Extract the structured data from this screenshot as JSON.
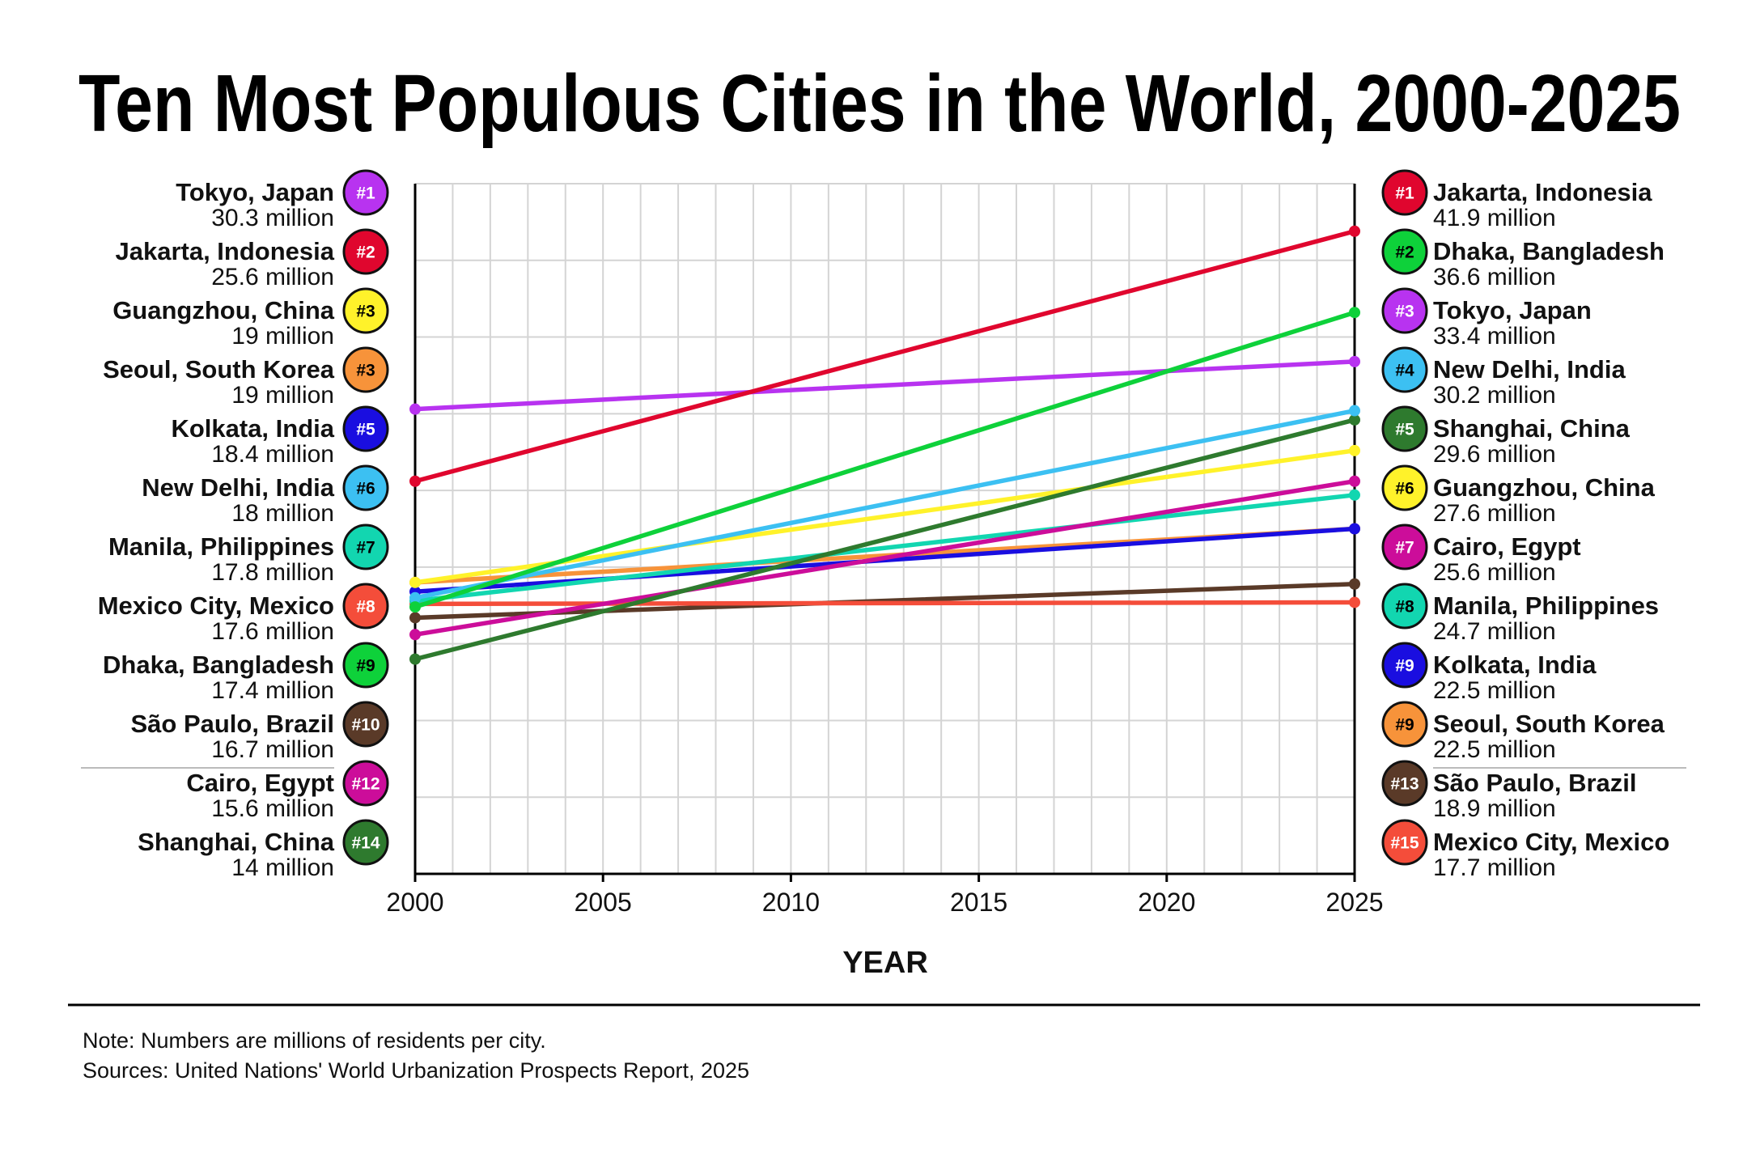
{
  "title": "Ten Most Populous Cities in the World, 2000-2025",
  "note": "Note: Numbers are millions of residents per city.",
  "sources": "Sources: United Nations' World Urbanization Prospects Report, 2025",
  "chart_data": {
    "type": "line",
    "title": "Ten Most Populous Cities in the World, 2000-2025",
    "xlabel": "YEAR",
    "x": [
      2000,
      2025
    ],
    "xticks": [
      "2000",
      "2005",
      "2010",
      "2015",
      "2020",
      "2025"
    ],
    "xlim": [
      2000,
      2025
    ],
    "ylim": [
      0,
      45
    ],
    "grid": true,
    "series": [
      {
        "name": "São Paulo, Brazil",
        "color": "#5a3a28",
        "values": [
          16.7,
          18.9
        ]
      },
      {
        "name": "Mexico City, Mexico",
        "color": "#f44d3a",
        "values": [
          17.6,
          17.7
        ]
      },
      {
        "name": "Seoul, South Korea",
        "color": "#f7933a",
        "values": [
          19,
          22.5
        ]
      },
      {
        "name": "Kolkata, India",
        "color": "#1a0ee0",
        "values": [
          18.4,
          22.5
        ]
      },
      {
        "name": "Manila, Philippines",
        "color": "#12d6b0",
        "values": [
          17.8,
          24.7
        ]
      },
      {
        "name": "Cairo, Egypt",
        "color": "#cc0d9a",
        "values": [
          15.6,
          25.6
        ]
      },
      {
        "name": "Guangzhou, China",
        "color": "#fff22a",
        "values": [
          19,
          27.6
        ]
      },
      {
        "name": "Shanghai, China",
        "color": "#2e7a2e",
        "values": [
          14,
          29.6
        ]
      },
      {
        "name": "New Delhi, India",
        "color": "#3cc0f2",
        "values": [
          18,
          30.2
        ]
      },
      {
        "name": "Tokyo, Japan",
        "color": "#b833f0",
        "values": [
          30.3,
          33.4
        ]
      },
      {
        "name": "Dhaka, Bangladesh",
        "color": "#0ed13a",
        "values": [
          17.4,
          36.6
        ]
      },
      {
        "name": "Jakarta, Indonesia",
        "color": "#e0062e",
        "values": [
          25.6,
          41.9
        ]
      }
    ],
    "left_labels": [
      {
        "rank": "#1",
        "city": "Tokyo, Japan",
        "value": "30.3 million",
        "color": "#b833f0",
        "text_color": "#ffffff"
      },
      {
        "rank": "#2",
        "city": "Jakarta, Indonesia",
        "value": "25.6 million",
        "color": "#e0062e",
        "text_color": "#ffffff"
      },
      {
        "rank": "#3",
        "city": "Guangzhou, China",
        "value": "19 million",
        "color": "#fff22a",
        "text_color": "#000000"
      },
      {
        "rank": "#3",
        "city": "Seoul, South Korea",
        "value": "19 million",
        "color": "#f7933a",
        "text_color": "#000000"
      },
      {
        "rank": "#5",
        "city": "Kolkata, India",
        "value": "18.4 million",
        "color": "#1a0ee0",
        "text_color": "#ffffff"
      },
      {
        "rank": "#6",
        "city": "New Delhi, India",
        "value": "18 million",
        "color": "#3cc0f2",
        "text_color": "#000000"
      },
      {
        "rank": "#7",
        "city": "Manila, Philippines",
        "value": "17.8 million",
        "color": "#12d6b0",
        "text_color": "#000000"
      },
      {
        "rank": "#8",
        "city": "Mexico City, Mexico",
        "value": "17.6 million",
        "color": "#f44d3a",
        "text_color": "#ffffff"
      },
      {
        "rank": "#9",
        "city": "Dhaka, Bangladesh",
        "value": "17.4 million",
        "color": "#0ed13a",
        "text_color": "#000000"
      },
      {
        "rank": "#10",
        "city": "São Paulo, Brazil",
        "value": "16.7 million",
        "color": "#5a3a28",
        "text_color": "#ffffff"
      },
      {
        "rank": "#12",
        "city": "Cairo, Egypt",
        "value": "15.6 million",
        "color": "#cc0d9a",
        "text_color": "#ffffff"
      },
      {
        "rank": "#14",
        "city": "Shanghai, China",
        "value": "14 million",
        "color": "#2e7a2e",
        "text_color": "#ffffff"
      }
    ],
    "right_labels": [
      {
        "rank": "#1",
        "city": "Jakarta, Indonesia",
        "value": "41.9 million",
        "color": "#e0062e",
        "text_color": "#ffffff"
      },
      {
        "rank": "#2",
        "city": "Dhaka, Bangladesh",
        "value": "36.6 million",
        "color": "#0ed13a",
        "text_color": "#000000"
      },
      {
        "rank": "#3",
        "city": "Tokyo, Japan",
        "value": "33.4 million",
        "color": "#b833f0",
        "text_color": "#ffffff"
      },
      {
        "rank": "#4",
        "city": "New Delhi, India",
        "value": "30.2 million",
        "color": "#3cc0f2",
        "text_color": "#000000"
      },
      {
        "rank": "#5",
        "city": "Shanghai, China",
        "value": "29.6 million",
        "color": "#2e7a2e",
        "text_color": "#ffffff"
      },
      {
        "rank": "#6",
        "city": "Guangzhou, China",
        "value": "27.6 million",
        "color": "#fff22a",
        "text_color": "#000000"
      },
      {
        "rank": "#7",
        "city": "Cairo, Egypt",
        "value": "25.6 million",
        "color": "#cc0d9a",
        "text_color": "#ffffff"
      },
      {
        "rank": "#8",
        "city": "Manila, Philippines",
        "value": "24.7 million",
        "color": "#12d6b0",
        "text_color": "#000000"
      },
      {
        "rank": "#9",
        "city": "Kolkata, India",
        "value": "22.5 million",
        "color": "#1a0ee0",
        "text_color": "#ffffff"
      },
      {
        "rank": "#9",
        "city": "Seoul, South Korea",
        "value": "22.5 million",
        "color": "#f7933a",
        "text_color": "#000000"
      },
      {
        "rank": "#13",
        "city": "São Paulo, Brazil",
        "value": "18.9 million",
        "color": "#5a3a28",
        "text_color": "#ffffff"
      },
      {
        "rank": "#15",
        "city": "Mexico City, Mexico",
        "value": "17.7 million",
        "color": "#f44d3a",
        "text_color": "#ffffff"
      }
    ]
  }
}
